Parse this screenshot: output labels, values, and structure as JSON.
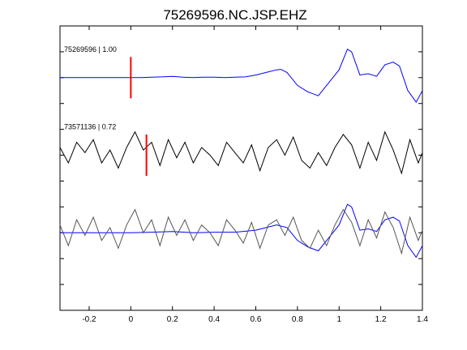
{
  "chart_data": {
    "type": "line",
    "title": "75269596.NC.JSP.EHZ",
    "xlabel": "",
    "ylabel": "",
    "xlim": [
      -0.34,
      1.4
    ],
    "x_ticks": [
      -0.2,
      0,
      0.2,
      0.4,
      0.6,
      0.8,
      1,
      1.2,
      1.4
    ],
    "x_tick_labels": [
      "-0.2",
      "0",
      "0.2",
      "0.4",
      "0.6",
      "0.8",
      "1",
      "1.2",
      "1.4"
    ],
    "ylim": [
      -1,
      10
    ],
    "y_ticks": [
      0,
      1,
      2,
      3,
      4,
      5,
      6,
      7,
      8,
      9
    ],
    "grid": false,
    "traces": [
      {
        "label": "75269596 | 1.00",
        "pick_x": 0.0,
        "color": "#0000ff",
        "x": [
          -0.34,
          0.0,
          0.05,
          0.1,
          0.15,
          0.2,
          0.25,
          0.3,
          0.35,
          0.4,
          0.45,
          0.5,
          0.55,
          0.6,
          0.65,
          0.7,
          0.72,
          0.75,
          0.8,
          0.85,
          0.9,
          0.95,
          1.0,
          1.04,
          1.06,
          1.1,
          1.14,
          1.18,
          1.22,
          1.26,
          1.29,
          1.33,
          1.37,
          1.4
        ],
        "offset": [
          0.0,
          0.0,
          0.0,
          0.02,
          0.03,
          0.05,
          0.02,
          0.0,
          0.02,
          0.02,
          0.0,
          0.02,
          0.03,
          0.1,
          0.2,
          0.3,
          0.32,
          0.2,
          -0.3,
          -0.55,
          -0.7,
          -0.2,
          0.3,
          1.1,
          1.0,
          0.1,
          0.15,
          0.05,
          0.5,
          0.6,
          0.45,
          -0.5,
          -0.95,
          -0.5
        ]
      },
      {
        "label": "73571136 | 0.72",
        "pick_x": 0.075,
        "color": "#000000",
        "x": [
          -0.34,
          -0.3,
          -0.26,
          -0.22,
          -0.18,
          -0.14,
          -0.1,
          -0.06,
          -0.02,
          0.02,
          0.06,
          0.1,
          0.14,
          0.18,
          0.22,
          0.26,
          0.3,
          0.34,
          0.38,
          0.42,
          0.46,
          0.5,
          0.54,
          0.58,
          0.62,
          0.66,
          0.7,
          0.74,
          0.78,
          0.82,
          0.86,
          0.9,
          0.94,
          0.98,
          1.02,
          1.06,
          1.1,
          1.14,
          1.18,
          1.22,
          1.26,
          1.3,
          1.34,
          1.38,
          1.4
        ],
        "offset": [
          0.3,
          -0.3,
          0.5,
          0.1,
          0.6,
          -0.3,
          0.2,
          -0.5,
          0.3,
          0.9,
          0.2,
          0.5,
          -0.4,
          0.6,
          -0.1,
          0.5,
          -0.3,
          0.3,
          0.0,
          -0.4,
          0.5,
          0.1,
          -0.3,
          0.4,
          -0.6,
          0.3,
          0.6,
          0.0,
          0.7,
          -0.2,
          -0.5,
          0.1,
          -0.4,
          0.3,
          0.8,
          0.4,
          -0.5,
          0.5,
          -0.2,
          0.9,
          0.2,
          -0.7,
          0.6,
          -0.3,
          0.1
        ]
      },
      {
        "label": "",
        "pick_x": null,
        "color": "#0000ff",
        "overlay": true,
        "x": [
          -0.34,
          0.0,
          0.1,
          0.2,
          0.3,
          0.4,
          0.5,
          0.6,
          0.7,
          0.75,
          0.8,
          0.85,
          0.9,
          0.95,
          1.0,
          1.04,
          1.06,
          1.1,
          1.14,
          1.18,
          1.22,
          1.26,
          1.29,
          1.33,
          1.37,
          1.4
        ],
        "offset": [
          0.0,
          0.0,
          0.02,
          0.05,
          0.0,
          0.02,
          0.02,
          0.1,
          0.3,
          0.2,
          -0.3,
          -0.55,
          -0.7,
          -0.2,
          0.3,
          1.1,
          1.0,
          0.1,
          0.15,
          0.05,
          0.5,
          0.6,
          0.45,
          -0.5,
          -0.95,
          -0.5
        ]
      },
      {
        "label": "",
        "pick_x": null,
        "color": "#555555",
        "overlay": true,
        "x": [
          -0.34,
          -0.3,
          -0.26,
          -0.22,
          -0.18,
          -0.14,
          -0.1,
          -0.06,
          -0.02,
          0.02,
          0.06,
          0.1,
          0.14,
          0.18,
          0.22,
          0.26,
          0.3,
          0.34,
          0.38,
          0.42,
          0.46,
          0.5,
          0.54,
          0.58,
          0.62,
          0.66,
          0.7,
          0.74,
          0.78,
          0.82,
          0.86,
          0.9,
          0.94,
          0.98,
          1.02,
          1.06,
          1.1,
          1.14,
          1.18,
          1.22,
          1.26,
          1.3,
          1.34,
          1.38,
          1.4
        ],
        "offset": [
          0.3,
          -0.5,
          0.5,
          -0.1,
          0.6,
          -0.3,
          0.2,
          -0.6,
          0.3,
          0.9,
          0.0,
          0.5,
          -0.5,
          0.6,
          -0.1,
          0.5,
          -0.3,
          0.3,
          0.0,
          -0.5,
          0.5,
          0.1,
          -0.4,
          0.4,
          -0.6,
          0.3,
          0.5,
          -0.1,
          0.6,
          -0.3,
          -0.6,
          0.1,
          -0.5,
          0.3,
          0.9,
          0.4,
          -0.5,
          0.5,
          -0.2,
          0.8,
          0.2,
          -0.8,
          0.6,
          -0.3,
          0.1
        ]
      }
    ],
    "baselines": [
      8,
      5,
      2,
      2
    ]
  }
}
